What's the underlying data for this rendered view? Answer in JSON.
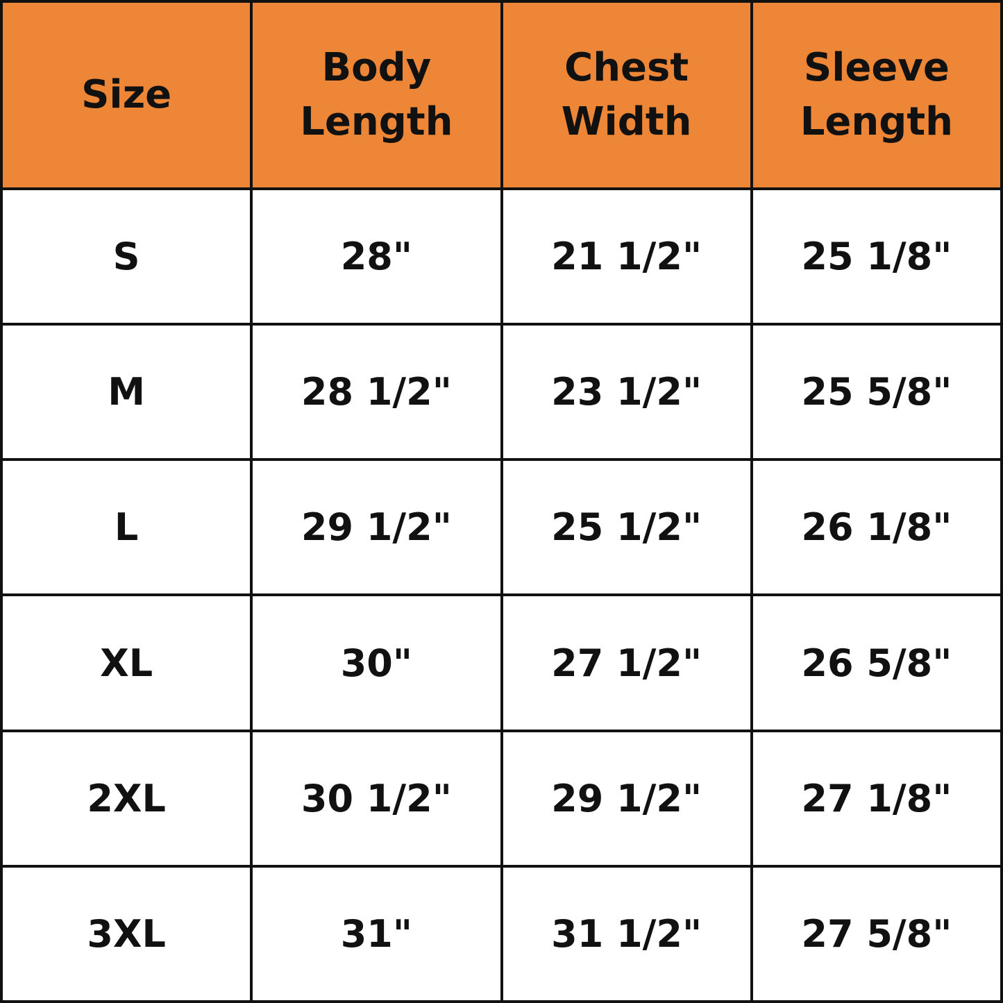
{
  "table": {
    "header": [
      "Size",
      "Body Length",
      "Chest Width",
      "Sleeve Length"
    ],
    "rows": [
      [
        "S",
        "28\"",
        "21 1/2\"",
        "25 1/8\""
      ],
      [
        "M",
        "28 1/2\"",
        "23 1/2\"",
        "25 5/8\""
      ],
      [
        "L",
        "29 1/2\"",
        "25 1/2\"",
        "26 1/8\""
      ],
      [
        "XL",
        "30\"",
        "27 1/2\"",
        "26 5/8\""
      ],
      [
        "2XL",
        "30 1/2\"",
        "29 1/2\"",
        "27 1/8\""
      ],
      [
        "3XL",
        "31\"",
        "31 1/2\"",
        "27 5/8\""
      ]
    ]
  }
}
